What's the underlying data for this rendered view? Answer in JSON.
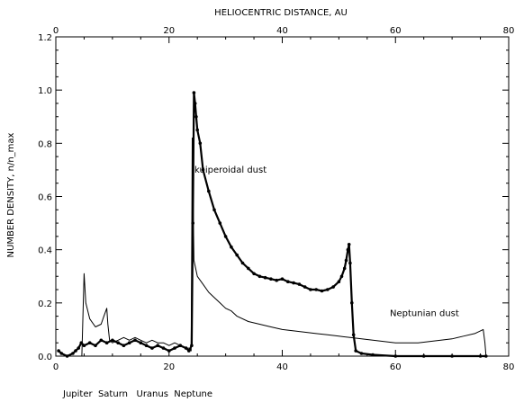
{
  "chart_data": {
    "type": "line",
    "title": "HELIOCENTRIC DISTANCE,  AU",
    "xlabel": "Jupiter  Saturn   Uranus  Neptune",
    "ylabel": "NUMBER DENSITY, n/n_max",
    "xlim": [
      0,
      80
    ],
    "ylim": [
      0,
      1.2
    ],
    "xticks": [
      0,
      20,
      40,
      60,
      80
    ],
    "xtick_labels": [
      "0",
      "20",
      "40",
      "60",
      "80"
    ],
    "yticks": [
      0.0,
      0.2,
      0.4,
      0.6,
      0.8,
      1.0,
      1.2
    ],
    "ytick_labels": [
      "0.0",
      "0.2",
      "0.4",
      "0.6",
      "0.8",
      "1.0",
      "1.2"
    ],
    "grid": false,
    "series": [
      {
        "name": "kuiperoidal dust",
        "style": "thick-dotted",
        "x": [
          0.5,
          1,
          2,
          3,
          3.5,
          4,
          4.5,
          5,
          6,
          7,
          8,
          9,
          10,
          11,
          12,
          13,
          14,
          15,
          16,
          17,
          18,
          19,
          20,
          21,
          22,
          23,
          23.5,
          24,
          24.2,
          24.4,
          24.6,
          24.8,
          25,
          25.5,
          26,
          27,
          28,
          29,
          30,
          31,
          32,
          33,
          34,
          35,
          36,
          37,
          38,
          39,
          40,
          41,
          42,
          43,
          44,
          45,
          46,
          47,
          48,
          49,
          50,
          50.5,
          51,
          51.3,
          51.6,
          51.8,
          52,
          52.3,
          52.6,
          53,
          54,
          56,
          60,
          65,
          70,
          75,
          76
        ],
        "y": [
          0.02,
          0.01,
          0.0,
          0.01,
          0.02,
          0.03,
          0.05,
          0.04,
          0.05,
          0.04,
          0.06,
          0.05,
          0.06,
          0.05,
          0.04,
          0.05,
          0.06,
          0.05,
          0.04,
          0.03,
          0.04,
          0.03,
          0.02,
          0.03,
          0.04,
          0.03,
          0.02,
          0.04,
          0.5,
          0.99,
          0.95,
          0.9,
          0.85,
          0.8,
          0.7,
          0.62,
          0.55,
          0.5,
          0.45,
          0.41,
          0.38,
          0.35,
          0.33,
          0.31,
          0.3,
          0.295,
          0.29,
          0.285,
          0.29,
          0.28,
          0.275,
          0.27,
          0.26,
          0.25,
          0.25,
          0.245,
          0.25,
          0.26,
          0.28,
          0.3,
          0.33,
          0.36,
          0.4,
          0.42,
          0.35,
          0.2,
          0.08,
          0.02,
          0.01,
          0.005,
          0.0,
          0.0,
          0.0,
          0.0,
          0.0
        ]
      },
      {
        "name": "Neptunian dust",
        "style": "thin",
        "x": [
          4.6,
          5,
          5.3,
          6,
          7,
          8,
          8.5,
          9,
          9.2,
          9.5,
          10,
          11,
          12,
          13,
          14,
          15,
          16,
          17,
          18,
          19,
          20,
          21,
          22,
          23,
          23.5,
          23.9,
          24,
          24.1,
          24.4,
          24.7,
          25,
          26,
          27,
          28,
          29,
          30,
          31,
          32,
          34,
          36,
          38,
          40,
          42,
          44,
          46,
          48,
          50,
          52,
          54,
          56,
          58,
          60,
          62,
          64,
          66,
          68,
          70,
          72,
          74,
          75,
          75.5,
          75.8,
          76
        ],
        "y": [
          0.0,
          0.31,
          0.2,
          0.14,
          0.11,
          0.12,
          0.15,
          0.18,
          0.12,
          0.06,
          0.05,
          0.06,
          0.07,
          0.06,
          0.07,
          0.06,
          0.05,
          0.06,
          0.05,
          0.05,
          0.04,
          0.05,
          0.04,
          0.03,
          0.03,
          0.02,
          0.4,
          0.82,
          0.36,
          0.33,
          0.3,
          0.27,
          0.24,
          0.22,
          0.2,
          0.18,
          0.17,
          0.15,
          0.13,
          0.12,
          0.11,
          0.1,
          0.095,
          0.09,
          0.085,
          0.08,
          0.075,
          0.07,
          0.065,
          0.06,
          0.055,
          0.05,
          0.05,
          0.05,
          0.055,
          0.06,
          0.065,
          0.075,
          0.085,
          0.095,
          0.1,
          0.05,
          0.0
        ]
      }
    ],
    "annotations": [
      {
        "text": "kuiperoidal dust",
        "x": 24.5,
        "y": 0.69
      },
      {
        "text": "Neptunian dust",
        "x": 59,
        "y": 0.15
      }
    ]
  }
}
